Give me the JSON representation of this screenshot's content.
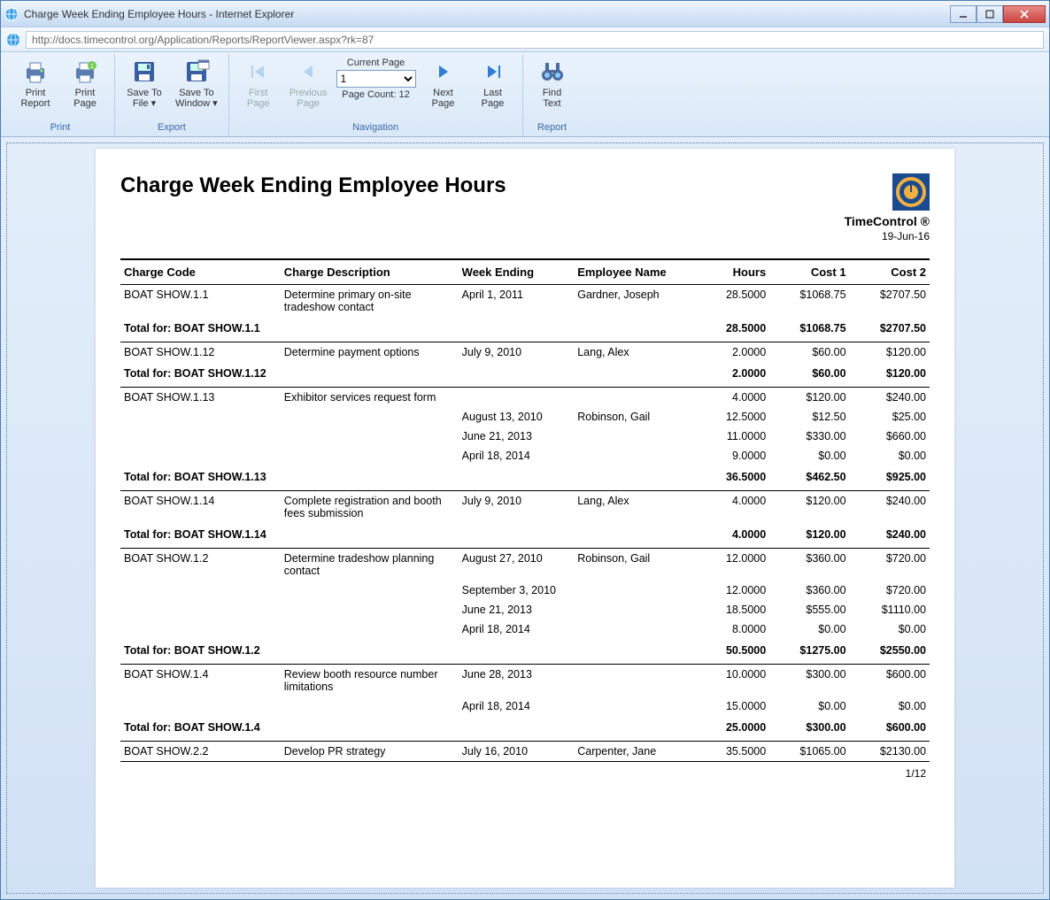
{
  "window": {
    "title": "Charge Week Ending Employee Hours - Internet Explorer",
    "url": "http://docs.timecontrol.org/Application/Reports/ReportViewer.aspx?rk=87"
  },
  "toolbar": {
    "print": {
      "label": "Print",
      "report": "Print\nReport",
      "page": "Print\nPage"
    },
    "export": {
      "label": "Export",
      "saveFile": "Save To\nFile ▾",
      "saveWindow": "Save To\nWindow ▾"
    },
    "nav": {
      "label": "Navigation",
      "first": "First\nPage",
      "prev": "Previous\nPage",
      "next": "Next\nPage",
      "last": "Last\nPage",
      "currentPageLabel": "Current Page",
      "currentPage": "1",
      "pageCount": "Page Count: 12"
    },
    "report": {
      "label": "Report",
      "find": "Find\nText"
    }
  },
  "report": {
    "title": "Charge Week Ending Employee Hours",
    "brand": "TimeControl ®",
    "date": "19-Jun-16",
    "pageLabel": "1/12",
    "headers": {
      "code": "Charge Code",
      "desc": "Charge Description",
      "week": "Week Ending",
      "emp": "Employee Name",
      "hours": "Hours",
      "c1": "Cost 1",
      "c2": "Cost 2"
    },
    "groups": [
      {
        "code": "BOAT SHOW.1.1",
        "desc": "Determine primary on-site tradeshow contact",
        "rows": [
          {
            "week": "April 1, 2011",
            "emp": "Gardner, Joseph",
            "h": "28.5000",
            "c1": "$1068.75",
            "c2": "$2707.50"
          }
        ],
        "total": {
          "label": "Total for: BOAT SHOW.1.1",
          "h": "28.5000",
          "c1": "$1068.75",
          "c2": "$2707.50"
        }
      },
      {
        "code": "BOAT SHOW.1.12",
        "desc": "Determine payment options",
        "rows": [
          {
            "week": "July 9, 2010",
            "emp": "Lang, Alex",
            "h": "2.0000",
            "c1": "$60.00",
            "c2": "$120.00"
          }
        ],
        "total": {
          "label": "Total for: BOAT SHOW.1.12",
          "h": "2.0000",
          "c1": "$60.00",
          "c2": "$120.00"
        }
      },
      {
        "code": "BOAT SHOW.1.13",
        "desc": "Exhibitor services request form",
        "rows": [
          {
            "week": "",
            "emp": "",
            "h": "4.0000",
            "c1": "$120.00",
            "c2": "$240.00"
          },
          {
            "week": "August 13, 2010",
            "emp": "Robinson, Gail",
            "h": "12.5000",
            "c1": "$12.50",
            "c2": "$25.00"
          },
          {
            "week": "June 21, 2013",
            "emp": "",
            "h": "11.0000",
            "c1": "$330.00",
            "c2": "$660.00"
          },
          {
            "week": "April 18, 2014",
            "emp": "",
            "h": "9.0000",
            "c1": "$0.00",
            "c2": "$0.00"
          }
        ],
        "total": {
          "label": "Total for: BOAT SHOW.1.13",
          "h": "36.5000",
          "c1": "$462.50",
          "c2": "$925.00"
        }
      },
      {
        "code": "BOAT SHOW.1.14",
        "desc": "Complete registration and booth fees submission",
        "rows": [
          {
            "week": "July 9, 2010",
            "emp": "Lang, Alex",
            "h": "4.0000",
            "c1": "$120.00",
            "c2": "$240.00"
          }
        ],
        "total": {
          "label": "Total for: BOAT SHOW.1.14",
          "h": "4.0000",
          "c1": "$120.00",
          "c2": "$240.00"
        }
      },
      {
        "code": "BOAT SHOW.1.2",
        "desc": "Determine tradeshow planning contact",
        "rows": [
          {
            "week": "August 27, 2010",
            "emp": "Robinson, Gail",
            "h": "12.0000",
            "c1": "$360.00",
            "c2": "$720.00"
          },
          {
            "week": "September 3, 2010",
            "emp": "",
            "h": "12.0000",
            "c1": "$360.00",
            "c2": "$720.00"
          },
          {
            "week": "June 21, 2013",
            "emp": "",
            "h": "18.5000",
            "c1": "$555.00",
            "c2": "$1110.00"
          },
          {
            "week": "April 18, 2014",
            "emp": "",
            "h": "8.0000",
            "c1": "$0.00",
            "c2": "$0.00"
          }
        ],
        "total": {
          "label": "Total for: BOAT SHOW.1.2",
          "h": "50.5000",
          "c1": "$1275.00",
          "c2": "$2550.00"
        }
      },
      {
        "code": "BOAT SHOW.1.4",
        "desc": "Review booth resource number limitations",
        "rows": [
          {
            "week": "June 28, 2013",
            "emp": "",
            "h": "10.0000",
            "c1": "$300.00",
            "c2": "$600.00"
          },
          {
            "week": "April 18, 2014",
            "emp": "",
            "h": "15.0000",
            "c1": "$0.00",
            "c2": "$0.00"
          }
        ],
        "total": {
          "label": "Total for: BOAT SHOW.1.4",
          "h": "25.0000",
          "c1": "$300.00",
          "c2": "$600.00"
        }
      },
      {
        "code": "BOAT SHOW.2.2",
        "desc": "Develop PR strategy",
        "rows": [
          {
            "week": "July 16, 2010",
            "emp": "Carpenter, Jane",
            "h": "35.5000",
            "c1": "$1065.00",
            "c2": "$2130.00"
          }
        ],
        "total": null
      }
    ]
  },
  "colors": {
    "ribbon": "#eaf3fc",
    "titlebar": "#d8e7f8",
    "accent": "#3a6aa8"
  }
}
